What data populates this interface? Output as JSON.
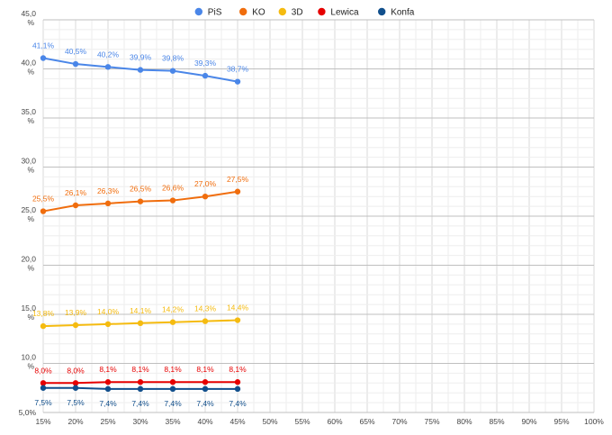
{
  "chart_data": {
    "type": "line",
    "x": [
      "15%",
      "20%",
      "25%",
      "30%",
      "35%",
      "40%",
      "45%"
    ],
    "x_axis_ticks": [
      "15%",
      "20%",
      "25%",
      "30%",
      "35%",
      "40%",
      "45%",
      "50%",
      "55%",
      "60%",
      "65%",
      "70%",
      "75%",
      "80%",
      "85%",
      "90%",
      "95%",
      "100%"
    ],
    "y_axis_ticks": [
      "45,0\n%",
      "40,0\n%",
      "35,0\n%",
      "30,0\n%",
      "25,0\n%",
      "20,0\n%",
      "15,0\n%",
      "10,0\n%",
      "5,0%"
    ],
    "ylim": [
      5,
      45
    ],
    "grid": true,
    "legend_position": "top",
    "series": [
      {
        "name": "PiS",
        "color": "#4a86e8",
        "values": [
          41.1,
          40.5,
          40.2,
          39.9,
          39.8,
          39.3,
          38.7
        ],
        "labels": [
          "41,1%",
          "40,5%",
          "40,2%",
          "39,9%",
          "39,8%",
          "39,3%",
          "38,7%"
        ]
      },
      {
        "name": "KO",
        "color": "#f06d0d",
        "values": [
          25.5,
          26.1,
          26.3,
          26.5,
          26.6,
          27.0,
          27.5
        ],
        "labels": [
          "25,5%",
          "26,1%",
          "26,3%",
          "26,5%",
          "26,6%",
          "27,0%",
          "27,5%"
        ]
      },
      {
        "name": "3D",
        "color": "#f5bb10",
        "values": [
          13.8,
          13.9,
          14.0,
          14.1,
          14.2,
          14.3,
          14.4
        ],
        "labels": [
          "13,8%",
          "13,9%",
          "14,0%",
          "14,1%",
          "14,2%",
          "14,3%",
          "14,4%"
        ]
      },
      {
        "name": "Lewica",
        "color": "#e60000",
        "values": [
          8.0,
          8.0,
          8.1,
          8.1,
          8.1,
          8.1,
          8.1
        ],
        "labels": [
          "8,0%",
          "8,0%",
          "8,1%",
          "8,1%",
          "8,1%",
          "8,1%",
          "8,1%"
        ]
      },
      {
        "name": "Konfa",
        "color": "#114f8c",
        "values": [
          7.5,
          7.5,
          7.4,
          7.4,
          7.4,
          7.4,
          7.4
        ],
        "labels": [
          "7,5%",
          "7,5%",
          "7,4%",
          "7,4%",
          "7,4%",
          "7,4%",
          "7,4%"
        ]
      }
    ]
  }
}
